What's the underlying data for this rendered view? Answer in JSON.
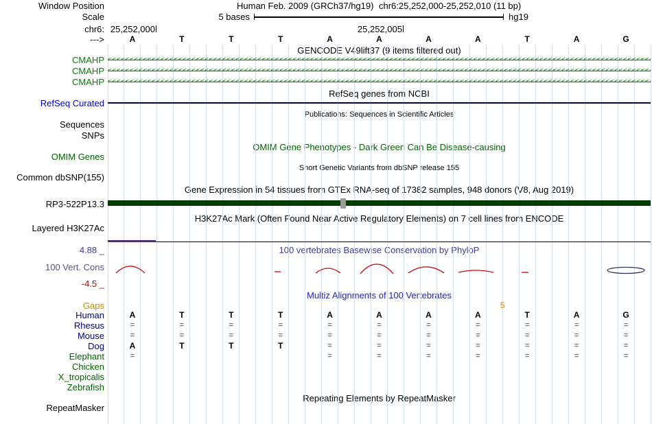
{
  "header": {
    "window_position_label": "Window Position",
    "assembly": "Human Feb. 2009 (GRCh37/hg19)",
    "position": "chr6:25,252,000-25,252,010 (11 bp)",
    "scale_label": "Scale",
    "scale_text": "5 bases",
    "genome_build": "hg19",
    "chrom_label": "chr6:",
    "coord_left": "25,252,000",
    "coord_right": "25,252,005",
    "strand_arrow": "--->"
  },
  "ruler_bases": [
    "A",
    "T",
    "T",
    "T",
    "A",
    "A",
    "A",
    "A",
    "T",
    "A",
    "G"
  ],
  "gencode": {
    "header": "GENCODE V49lift37 (9 items filtered out)",
    "transcripts": [
      "CMAHP",
      "CMAHP",
      "CMAHP"
    ]
  },
  "refseq": {
    "header": "RefSeq genes from NCBI",
    "label": "RefSeq Curated"
  },
  "publications": {
    "header": "Publications: Sequences in Scientific Articles",
    "sequences_label": "Sequences",
    "snps_label": "SNPs"
  },
  "omim": {
    "header": "OMIM Gene Phenotypes - Dark Green Can Be Disease-causing",
    "label": "OMIM Genes"
  },
  "dbsnp": {
    "header": "Short Genetic Variants from dbSNP release 155",
    "label": "Common dbSNP(155)"
  },
  "gtex": {
    "header": "Gene Expression in 54 tissues from GTEx RNA-seq of 17382 samples, 948 donors (V8, Aug 2019)",
    "gene_label": "RP3-522P13.3"
  },
  "h3k27ac": {
    "header": "H3K27Ac Mark (Often Found Near Active Regulatory Elements) on 7 cell lines from ENCODE",
    "label": "Layered H3K27Ac"
  },
  "phylop": {
    "header": "100 vertebrates Basewise Conservation by PhyloP",
    "label": "100 Vert. Cons",
    "max_value": "4.88 _",
    "min_value": "-4.5 _"
  },
  "multiz": {
    "header": "Multiz Alignments of 100 Vertebrates",
    "gaps_label": "Gaps",
    "gap_marker": {
      "value": "5",
      "boundary_index": 8
    },
    "rows": [
      {
        "name": "Human",
        "group": "mammal",
        "cells": [
          "A",
          "T",
          "T",
          "T",
          "A",
          "A",
          "A",
          "A",
          "T",
          "A",
          "G"
        ]
      },
      {
        "name": "Rhesus",
        "group": "mammal",
        "cells": [
          "=",
          "=",
          "=",
          "=",
          "=",
          "=",
          "=",
          "=",
          "=",
          "=",
          "="
        ]
      },
      {
        "name": "Mouse",
        "group": "mammal",
        "cells": [
          "=",
          "=",
          "=",
          "=",
          "=",
          "=",
          "=",
          "=",
          "=",
          "=",
          "="
        ]
      },
      {
        "name": "Dog",
        "group": "mammal",
        "cells": [
          "A",
          "T",
          "T",
          "T",
          "=",
          "=",
          "=",
          "=",
          "=",
          "=",
          "="
        ]
      },
      {
        "name": "Elephant",
        "group": "other",
        "cells": [
          "=",
          "",
          "",
          "",
          "=",
          "=",
          "=",
          "=",
          "=",
          "=",
          "="
        ]
      },
      {
        "name": "Chicken",
        "group": "other",
        "cells": [
          "",
          "",
          "",
          "",
          "",
          "",
          "",
          "",
          "",
          "",
          ""
        ]
      },
      {
        "name": "X_tropicalis",
        "group": "other",
        "cells": [
          "",
          "",
          "",
          "",
          "",
          "",
          "",
          "",
          "",
          "",
          ""
        ]
      },
      {
        "name": "Zebrafish",
        "group": "other",
        "cells": [
          "",
          "",
          "",
          "",
          "",
          "",
          "",
          "",
          "",
          "",
          ""
        ]
      }
    ]
  },
  "repeatmasker": {
    "header": "Repeating Elements by RepeatMasker",
    "label": "RepeatMasker"
  },
  "colors": {
    "gencode_green": "#008000",
    "refseq_blue": "#0000cd",
    "refseq_line": "#00004d",
    "omim_dark_green": "#006400",
    "gtex_gene_bar": "#003d00",
    "gtex_marker_gray": "#9b9b9b",
    "h3k27ac_purple": "#542a78",
    "phylop_red": "#c80000",
    "phylop_header_blue": "#3a3aa0",
    "conservation_label_slate": "#54548c",
    "multiz_header_blue": "#2424b4",
    "gaps_orange": "#cc8800",
    "species_mammal_navy": "#000080",
    "species_other_green": "#006400",
    "gridline_blue": "#d4dfee"
  }
}
